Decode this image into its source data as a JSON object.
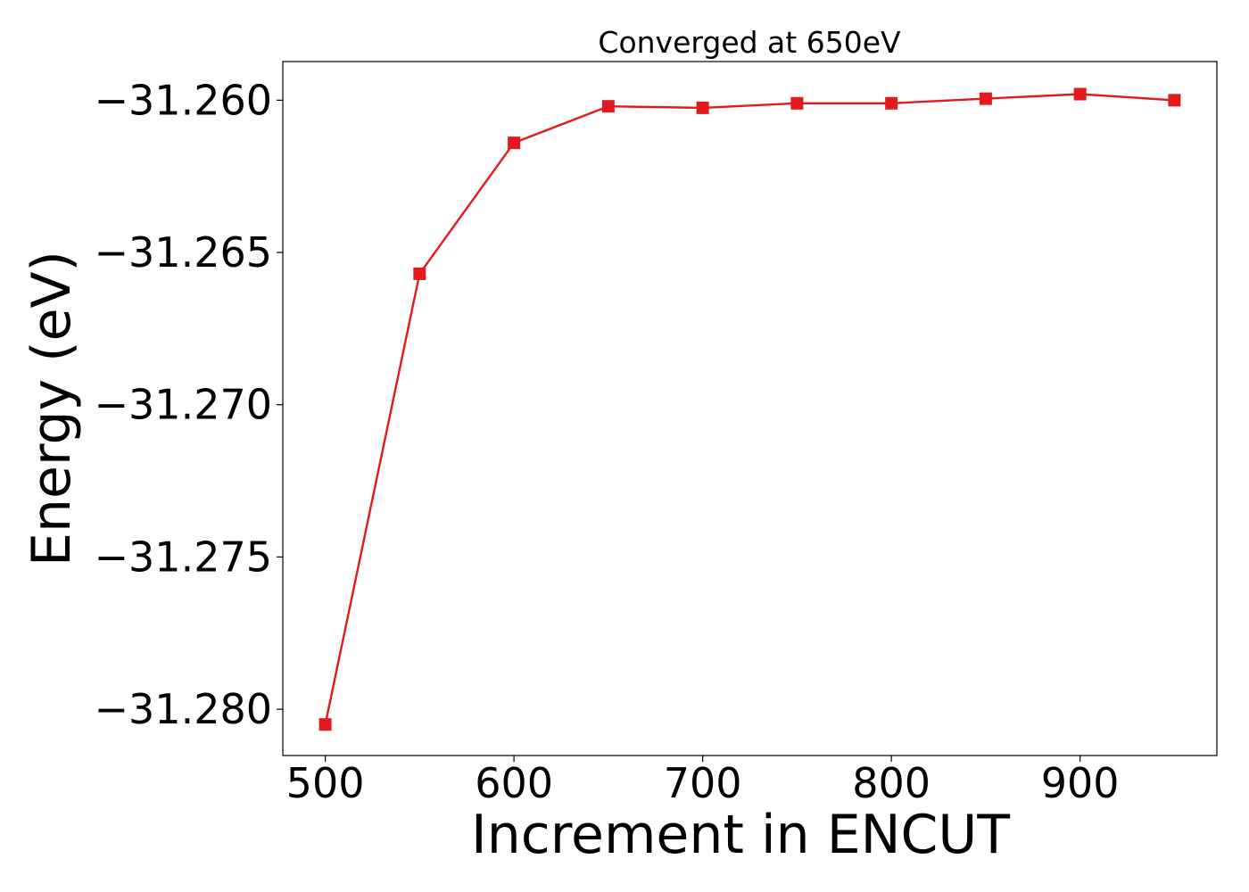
{
  "chart_data": {
    "type": "line",
    "title": "Converged at 650eV",
    "xlabel": "Increment in ENCUT",
    "ylabel": "Energy (eV)",
    "x": [
      500,
      550,
      600,
      650,
      700,
      750,
      800,
      850,
      900,
      950
    ],
    "series": [
      {
        "values": [
          -31.2805,
          -31.2657,
          -31.2614,
          -31.2602,
          -31.26025,
          -31.2601,
          -31.2601,
          -31.25995,
          -31.2598,
          -31.26
        ]
      }
    ],
    "xticks": [
      500,
      600,
      700,
      800,
      900
    ],
    "xtick_labels": [
      "500",
      "600",
      "700",
      "800",
      "900"
    ],
    "yticks": [
      -31.26,
      -31.265,
      -31.27,
      -31.275,
      -31.28
    ],
    "ytick_labels": [
      "−31.260",
      "−31.265",
      "−31.270",
      "−31.275",
      "−31.280"
    ],
    "xlim": [
      477.5,
      972.5
    ],
    "ylim": [
      -31.28152,
      -31.25873
    ],
    "line_color": "#e31a1c",
    "marker": "square",
    "grid": false,
    "legend": false
  }
}
